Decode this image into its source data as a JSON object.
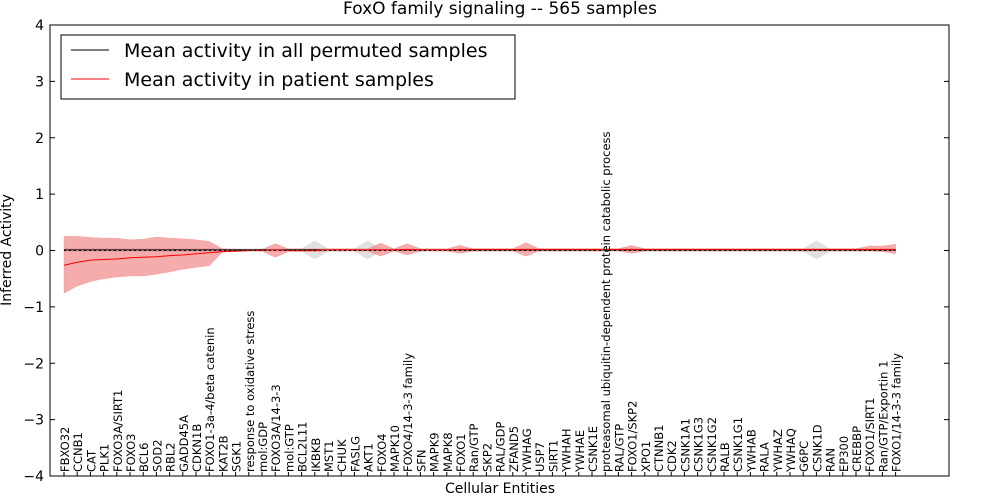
{
  "chart_data": {
    "type": "line",
    "title": "FoxO family signaling -- 565 samples",
    "xlabel": "Cellular Entities",
    "ylabel": "Inferred Activity",
    "ylim": [
      -4,
      4
    ],
    "yticks": [
      -4,
      -3,
      -2,
      -1,
      0,
      1,
      2,
      3,
      4
    ],
    "ytick_labels": [
      "−4",
      "−3",
      "−2",
      "−1",
      "0",
      "1",
      "2",
      "3",
      "4"
    ],
    "legend": {
      "position": "top-left",
      "entries": [
        {
          "label": "Mean activity in all permuted samples",
          "color": "#000000"
        },
        {
          "label": "Mean activity in patient samples",
          "color": "#ff0000"
        }
      ]
    },
    "colors": {
      "permuted_line": "#000000",
      "patient_line": "#ff0000",
      "permuted_band": "#c8c8c8",
      "patient_band": "#f08080"
    },
    "categories": [
      "FBXO32",
      "CCNB1",
      "CAT",
      "PLK1",
      "FOXO3A/SIRT1",
      "FOXO3",
      "BCL6",
      "SOD2",
      "RBL2",
      "GADD45A",
      "CDKN1B",
      "FOXO1-3a-4/beta catenin",
      "KAT2B",
      "SGK1",
      "response to oxidative stress",
      "mol:GDP",
      "FOXO3A/14-3-3",
      "mol:GTP",
      "BCL2L11",
      "IKBKB",
      "MST1",
      "CHUK",
      "FASLG",
      "AKT1",
      "FOXO4",
      "MAPK10",
      "FOXO4/14-3-3 family",
      "SFN",
      "MAPK9",
      "MAPK8",
      "FOXO1",
      "Ran/GTP",
      "SKP2",
      "RAL/GDP",
      "ZFAND5",
      "YWHAG",
      "USP7",
      "SIRT1",
      "YWHAH",
      "YWHAE",
      "CSNK1E",
      "proteasomal ubiquitin-dependent protein catabolic process",
      "RAL/GTP",
      "FOXO1/SKP2",
      "XPO1",
      "CTNNB1",
      "CDK2",
      "CSNK1A1",
      "CSNK1G3",
      "CSNK1G2",
      "RALB",
      "CSNK1G1",
      "YWHAB",
      "RALA",
      "YWHAZ",
      "YWHAQ",
      "G6PC",
      "CSNK1D",
      "RAN",
      "EP300",
      "CREBBP",
      "FOXO1/SIRT1",
      "Ran/GTP/Exportin 1",
      "FOXO1/14-3-3 family"
    ],
    "series": [
      {
        "name": "Mean activity in all permuted samples",
        "values": [
          0.01,
          0.01,
          0.01,
          0.01,
          0.01,
          0.01,
          0.01,
          0.01,
          0.01,
          0.01,
          0.01,
          0.01,
          0.01,
          0.01,
          0.01,
          0.01,
          0.01,
          0.01,
          0.01,
          0.01,
          0.01,
          0.01,
          0.01,
          0.01,
          0.01,
          0.01,
          0.01,
          0.01,
          0.01,
          0.01,
          0.01,
          0.01,
          0.01,
          0.01,
          0.01,
          0.01,
          0.01,
          0.01,
          0.01,
          0.01,
          0.01,
          0.01,
          0.01,
          0.01,
          0.01,
          0.01,
          0.01,
          0.01,
          0.01,
          0.01,
          0.01,
          0.01,
          0.01,
          0.01,
          0.01,
          0.01,
          0.01,
          0.01,
          0.01,
          0.01,
          0.01,
          0.01,
          0.01,
          0.01
        ],
        "lower": [
          -0.02,
          -0.02,
          -0.02,
          -0.02,
          -0.02,
          -0.02,
          -0.02,
          -0.02,
          -0.02,
          -0.02,
          -0.02,
          -0.02,
          -0.01,
          -0.01,
          -0.01,
          -0.01,
          -0.01,
          -0.01,
          -0.01,
          -0.15,
          -0.01,
          -0.01,
          -0.01,
          -0.15,
          -0.01,
          -0.01,
          -0.01,
          -0.01,
          -0.01,
          -0.01,
          -0.01,
          -0.01,
          -0.01,
          -0.01,
          -0.01,
          -0.01,
          -0.01,
          -0.01,
          -0.01,
          -0.01,
          -0.01,
          -0.01,
          -0.01,
          -0.01,
          -0.01,
          -0.01,
          -0.01,
          -0.01,
          -0.01,
          -0.01,
          -0.01,
          -0.01,
          -0.01,
          -0.01,
          -0.01,
          -0.01,
          -0.01,
          -0.15,
          -0.01,
          -0.01,
          -0.01,
          -0.01,
          -0.01,
          -0.01
        ],
        "upper": [
          0.04,
          0.04,
          0.04,
          0.04,
          0.04,
          0.04,
          0.04,
          0.04,
          0.04,
          0.04,
          0.04,
          0.04,
          0.03,
          0.03,
          0.03,
          0.03,
          0.03,
          0.03,
          0.03,
          0.17,
          0.03,
          0.03,
          0.03,
          0.17,
          0.03,
          0.03,
          0.03,
          0.03,
          0.03,
          0.03,
          0.03,
          0.03,
          0.03,
          0.03,
          0.03,
          0.03,
          0.03,
          0.03,
          0.03,
          0.03,
          0.03,
          0.03,
          0.03,
          0.03,
          0.03,
          0.03,
          0.03,
          0.03,
          0.03,
          0.03,
          0.03,
          0.03,
          0.03,
          0.03,
          0.03,
          0.03,
          0.03,
          0.17,
          0.03,
          0.03,
          0.03,
          0.03,
          0.03,
          0.03
        ]
      },
      {
        "name": "Mean activity in patient samples",
        "values": [
          -0.26,
          -0.21,
          -0.17,
          -0.16,
          -0.15,
          -0.13,
          -0.12,
          -0.11,
          -0.09,
          -0.08,
          -0.06,
          -0.04,
          -0.02,
          -0.01,
          0,
          0,
          0.01,
          0,
          0,
          0,
          0.01,
          0.01,
          0.01,
          0.01,
          0.01,
          0.01,
          0.02,
          0.01,
          0.01,
          0.01,
          0.02,
          0.02,
          0.02,
          0.02,
          0.02,
          0.02,
          0.02,
          0.02,
          0.02,
          0.02,
          0.02,
          0.02,
          0.02,
          0.02,
          0.02,
          0.02,
          0.02,
          0.02,
          0.02,
          0.02,
          0.02,
          0.02,
          0.02,
          0.02,
          0.02,
          0.02,
          0.02,
          0.02,
          0.02,
          0.02,
          0.02,
          0.02,
          0.02,
          0.02
        ],
        "lower": [
          -0.76,
          -0.63,
          -0.55,
          -0.5,
          -0.47,
          -0.45,
          -0.45,
          -0.42,
          -0.38,
          -0.33,
          -0.3,
          -0.27,
          -0.03,
          -0.02,
          -0.01,
          -0.01,
          -0.12,
          -0.02,
          -0.02,
          -0.02,
          -0.01,
          -0.01,
          -0.01,
          -0.01,
          -0.1,
          -0.01,
          -0.08,
          -0.01,
          -0.01,
          -0.01,
          -0.05,
          -0.01,
          -0.01,
          -0.01,
          -0.01,
          -0.1,
          -0.01,
          -0.01,
          -0.01,
          -0.01,
          -0.01,
          -0.01,
          -0.01,
          -0.05,
          -0.01,
          -0.01,
          -0.01,
          -0.01,
          -0.01,
          -0.01,
          -0.01,
          -0.01,
          -0.01,
          -0.01,
          -0.01,
          -0.01,
          -0.01,
          -0.01,
          -0.01,
          -0.01,
          -0.01,
          -0.01,
          -0.02,
          -0.06
        ],
        "upper": [
          0.25,
          0.25,
          0.23,
          0.22,
          0.22,
          0.19,
          0.2,
          0.24,
          0.22,
          0.21,
          0.19,
          0.16,
          0.03,
          0.02,
          0.02,
          0.02,
          0.12,
          0.03,
          0.03,
          0.03,
          0.03,
          0.03,
          0.03,
          0.03,
          0.13,
          0.03,
          0.12,
          0.03,
          0.03,
          0.03,
          0.09,
          0.03,
          0.03,
          0.03,
          0.03,
          0.14,
          0.03,
          0.03,
          0.03,
          0.03,
          0.03,
          0.03,
          0.03,
          0.09,
          0.03,
          0.03,
          0.03,
          0.03,
          0.03,
          0.03,
          0.03,
          0.03,
          0.03,
          0.03,
          0.03,
          0.03,
          0.03,
          0.03,
          0.03,
          0.03,
          0.03,
          0.08,
          0.08,
          0.11
        ]
      }
    ]
  }
}
